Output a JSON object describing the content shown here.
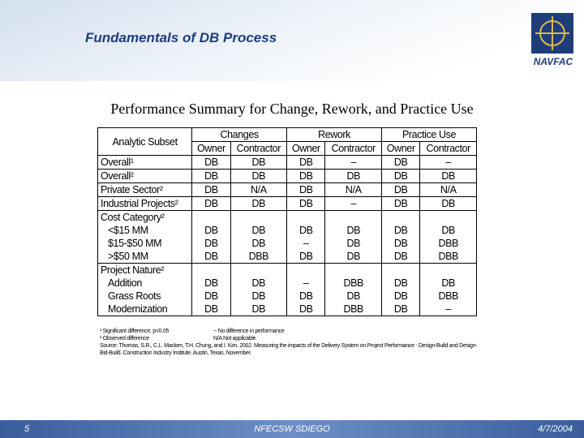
{
  "header": {
    "title": "Fundamentals of DB Process",
    "logo_text": "NAVFAC"
  },
  "subtitle": "Performance Summary for Change, Rework, and Practice Use",
  "table": {
    "row_header": "Analytic Subset",
    "group_headers": [
      "Changes",
      "Rework",
      "Practice Use"
    ],
    "sub_headers": [
      "Owner",
      "Contractor",
      "Owner",
      "Contractor",
      "Owner",
      "Contractor"
    ],
    "blocks": [
      {
        "lines": [
          {
            "label": "Overall¹",
            "values": [
              "DB",
              "DB",
              "DB",
              "–",
              "DB",
              "–"
            ]
          }
        ]
      },
      {
        "lines": [
          {
            "label": "Overall²",
            "values": [
              "DB",
              "DB",
              "DB",
              "DB",
              "DB",
              "DB"
            ]
          }
        ]
      },
      {
        "lines": [
          {
            "label": "Private Sector²",
            "values": [
              "DB",
              "N/A",
              "DB",
              "N/A",
              "DB",
              "N/A"
            ]
          }
        ]
      },
      {
        "lines": [
          {
            "label": "Industrial Projects²",
            "values": [
              "DB",
              "DB",
              "DB",
              "–",
              "DB",
              "DB"
            ]
          }
        ]
      },
      {
        "lines": [
          {
            "label": "Cost Category²"
          },
          {
            "label": "<$15 MM",
            "values": [
              "DB",
              "DB",
              "DB",
              "DB",
              "DB",
              "DB"
            ]
          },
          {
            "label": "$15-$50 MM",
            "values": [
              "DB",
              "DB",
              "–",
              "DB",
              "DB",
              "DBB"
            ]
          },
          {
            "label": ">$50 MM",
            "values": [
              "DB",
              "DBB",
              "DB",
              "DB",
              "DB",
              "DBB"
            ]
          }
        ]
      },
      {
        "lines": [
          {
            "label": "Project Nature²"
          },
          {
            "label": "Addition",
            "values": [
              "DB",
              "DB",
              "–",
              "DBB",
              "DB",
              "DB"
            ]
          },
          {
            "label": "Grass Roots",
            "values": [
              "DB",
              "DB",
              "DB",
              "DB",
              "DB",
              "DBB"
            ]
          },
          {
            "label": "Modernization",
            "values": [
              "DB",
              "DB",
              "DB",
              "DBB",
              "DB",
              "–"
            ]
          }
        ]
      }
    ]
  },
  "footnotes": [
    "¹ Significant difference, p<0.05",
    "-- No difference in performance",
    "² Observed difference",
    "N/A Not applicable"
  ],
  "source": "Source: Thomas, S.R., C.L. Macken, T.H. Chung, and I. Kim. 2002. Measuring the impacts of the Delivery System on Project Performance - Design-Build and Design-Bid-Build. Construction Industry Institute. Austin, Texas. November.",
  "footer": {
    "page": "5",
    "center": "NFECSW SDIEGO",
    "date": "4/7/2004"
  }
}
